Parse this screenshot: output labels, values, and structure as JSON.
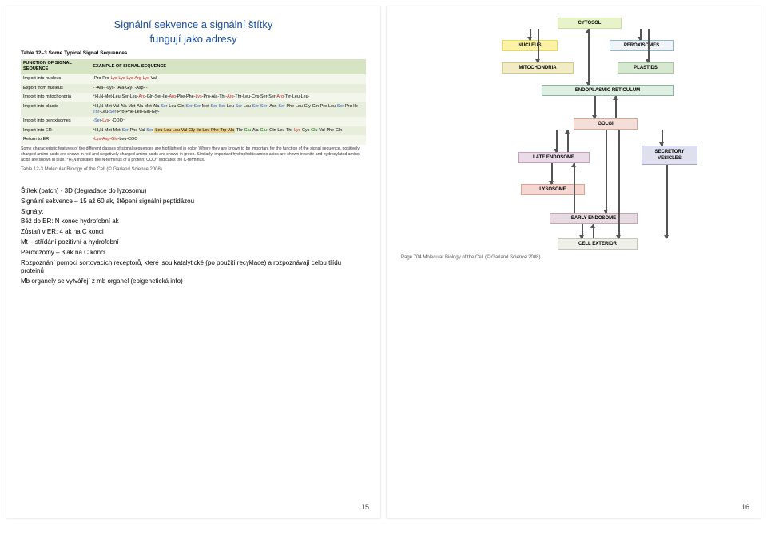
{
  "left": {
    "title_line1": "Signální sekvence a signální štítky",
    "title_line2": "fungují jako adresy",
    "table_label": "Table 12–3 Some Typical Signal Sequences",
    "table_header": [
      "FUNCTION OF SIGNAL SEQUENCE",
      "EXAMPLE OF SIGNAL SEQUENCE"
    ],
    "table_rows": [
      {
        "fn": "Import into nucleus",
        "seq": [
          {
            "t": "-Pro-Pro-",
            "c": ""
          },
          {
            "t": "Lys-Lys-Lys-Arg-Lys-",
            "c": "pos"
          },
          {
            "t": "Val-",
            "c": ""
          }
        ]
      },
      {
        "fn": "Export from nucleus",
        "seq": [
          {
            "t": "-   -Ala-   -Lys-   -Ala-Gly-   -Asp-   -",
            "c": ""
          }
        ]
      },
      {
        "fn": "Import into mitochondria",
        "seq": [
          {
            "t": "⁺H₃N-Met-Leu-Ser-Leu-",
            "c": ""
          },
          {
            "t": "Arg",
            "c": "pos"
          },
          {
            "t": "-Gln-Ser-Ile-",
            "c": ""
          },
          {
            "t": "Arg",
            "c": "pos"
          },
          {
            "t": "-Phe-Phe-",
            "c": ""
          },
          {
            "t": "Lys",
            "c": "pos"
          },
          {
            "t": "-Pro-Ala-Thr-",
            "c": ""
          },
          {
            "t": "Arg",
            "c": "pos"
          },
          {
            "t": "-Thr-Leu-Cys-Ser-Ser-",
            "c": ""
          },
          {
            "t": "Arg",
            "c": "pos"
          },
          {
            "t": "-Tyr-Leu-Leu-",
            "c": ""
          }
        ]
      },
      {
        "fn": "Import into plastid",
        "seq": [
          {
            "t": "⁺H₃N-Met-Val-Ala-Met-Ala-Met-Ala-",
            "c": ""
          },
          {
            "t": "Ser",
            "c": "hxy"
          },
          {
            "t": "-Leu-Gln-",
            "c": ""
          },
          {
            "t": "Ser-Ser",
            "c": "hxy"
          },
          {
            "t": "-Met-",
            "c": ""
          },
          {
            "t": "Ser-Ser",
            "c": "hxy"
          },
          {
            "t": "-Leu-",
            "c": ""
          },
          {
            "t": "Ser",
            "c": "hxy"
          },
          {
            "t": "-Leu-",
            "c": ""
          },
          {
            "t": "Ser-Ser",
            "c": "hxy"
          },
          {
            "t": "-  Asn-",
            "c": ""
          },
          {
            "t": "Ser",
            "c": "hxy"
          },
          {
            "t": "-Phe-Leu-Gly-Gln-Pro-Leu-",
            "c": ""
          },
          {
            "t": "Ser",
            "c": "hxy"
          },
          {
            "t": "-Pro-Ile-",
            "c": ""
          },
          {
            "t": "Thr",
            "c": "hxy"
          },
          {
            "t": "-Leu-",
            "c": ""
          },
          {
            "t": "Ser",
            "c": "hxy"
          },
          {
            "t": "-Pro-Phe-Leu-Gln-Gly-",
            "c": ""
          }
        ]
      },
      {
        "fn": "Import into peroxisomes",
        "seq": [
          {
            "t": "-",
            "c": ""
          },
          {
            "t": "Ser",
            "c": "hxy"
          },
          {
            "t": "-",
            "c": ""
          },
          {
            "t": "Lys",
            "c": "pos"
          },
          {
            "t": "-   -COO⁻",
            "c": ""
          }
        ]
      },
      {
        "fn": "Import into ER",
        "seq": [
          {
            "t": "⁺H₃N-Met-Met-",
            "c": ""
          },
          {
            "t": "Ser",
            "c": "hxy"
          },
          {
            "t": "-Phe-Val-",
            "c": ""
          },
          {
            "t": "Ser",
            "c": "hxy"
          },
          {
            "t": "-",
            "c": ""
          },
          {
            "t": "Leu-Leu-Leu-Val-Gly-Ile-Leu-Phe-Trp-Ala",
            "c": "bg"
          },
          {
            "t": "-Thr-",
            "c": ""
          },
          {
            "t": "Glu",
            "c": "neg"
          },
          {
            "t": "-Ala-",
            "c": ""
          },
          {
            "t": "Glu",
            "c": "neg"
          },
          {
            "t": "-  Gln-Leu-Thr-",
            "c": ""
          },
          {
            "t": "Lys",
            "c": "pos"
          },
          {
            "t": "-Cys-",
            "c": ""
          },
          {
            "t": "Glu",
            "c": "neg"
          },
          {
            "t": "-Val-Phe-Gln-",
            "c": ""
          }
        ]
      },
      {
        "fn": "Return to ER",
        "seq": [
          {
            "t": "-",
            "c": ""
          },
          {
            "t": "Lys-Asp-Glu",
            "c": "pos"
          },
          {
            "t": "-Leu-COO⁻",
            "c": ""
          }
        ]
      }
    ],
    "table_caption": "Some characteristic features of the different classes of signal sequences are highlighted in color. Where they are known to be important for the function of the signal sequence, positively charged amino acids are shown in red and negatively charged amino acids are shown in green. Similarly, important hydrophobic amino acids are shown in white and hydroxylated amino acids are shown in blue. ⁺H₃N indicates the N-terminus of a protein; COO⁻ indicates the C-terminus.",
    "ref_left": "Table 12-3 Molecular Biology of the Cell (© Garland Science 2008)",
    "body": [
      "Štítek (patch) - 3D (degradace do lyzosomu)",
      "Signální sekvence – 15 až 60 ak, štěpení signální peptidázou",
      "Signály:",
      "Běž do ER: N konec hydrofobní ak",
      "Zůstaň v ER: 4 ak na C konci",
      "Mt – střídání pozitivní a hydrofobní",
      "Peroxizomy – 3 ak na C konci",
      "Rozpoznání pomocí sortovacích receptorů, které jsou katalytické (po použití recyklace) a rozpoznávají celou třídu proteinů",
      "Mb organely se vytvářejí z mb organel (epigenetická info)"
    ],
    "pagenum": "15"
  },
  "right": {
    "boxes": {
      "cytosol": "CYTOSOL",
      "nucleus": "NUCLEUS",
      "peroxisomes": "PEROXISOMES",
      "mitochondria": "MITOCHONDRIA",
      "plastids": "PLASTIDS",
      "er": "ENDOPLASMIC RETICULUM",
      "golgi": "GOLGI",
      "late_endosome": "LATE ENDOSOME",
      "secretory": "SECRETORY\nVESICLES",
      "lysosome": "LYSOSOME",
      "early_endosome": "EARLY ENDOSOME",
      "cell_exterior": "CELL EXTERIOR"
    },
    "ref": "Page 704 Molecular Biology of the Cell (© Garland Science 2008)",
    "pagenum": "16"
  }
}
